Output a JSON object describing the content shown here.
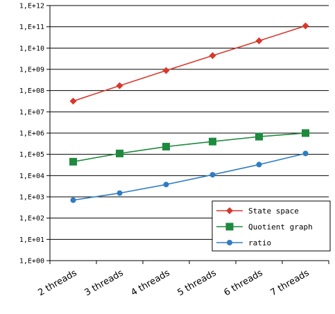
{
  "chart_data": {
    "type": "line",
    "y_scale": "log",
    "ylim": [
      1,
      1000000000000.0
    ],
    "grid": true,
    "legend_position": "bottom-right",
    "categories": [
      "2 threads",
      "3 threads",
      "4 threads",
      "5 threads",
      "6 threads",
      "7 threads"
    ],
    "y_tick_labels": [
      "1,E+00",
      "1,E+01",
      "1,E+02",
      "1,E+03",
      "1,E+04",
      "1,E+05",
      "1,E+06",
      "1,E+07",
      "1,E+08",
      "1,E+09",
      "1,E+10",
      "1,E+11",
      "1,E+12"
    ],
    "series": [
      {
        "name": "State space",
        "color": "#d9372b",
        "marker": "diamond",
        "values": [
          32000000.0,
          170000000.0,
          880000000.0,
          4400000000.0,
          22000000000.0,
          110000000000.0
        ]
      },
      {
        "name": "Quotient graph",
        "color": "#1e8a3e",
        "marker": "square",
        "values": [
          45000.0,
          110000.0,
          230000.0,
          400000.0,
          680000.0,
          1000000.0
        ]
      },
      {
        "name": "ratio",
        "color": "#2f7cc3",
        "marker": "circle",
        "values": [
          700.0,
          1500.0,
          3800.0,
          11000.0,
          33000.0,
          110000.0
        ]
      }
    ]
  }
}
